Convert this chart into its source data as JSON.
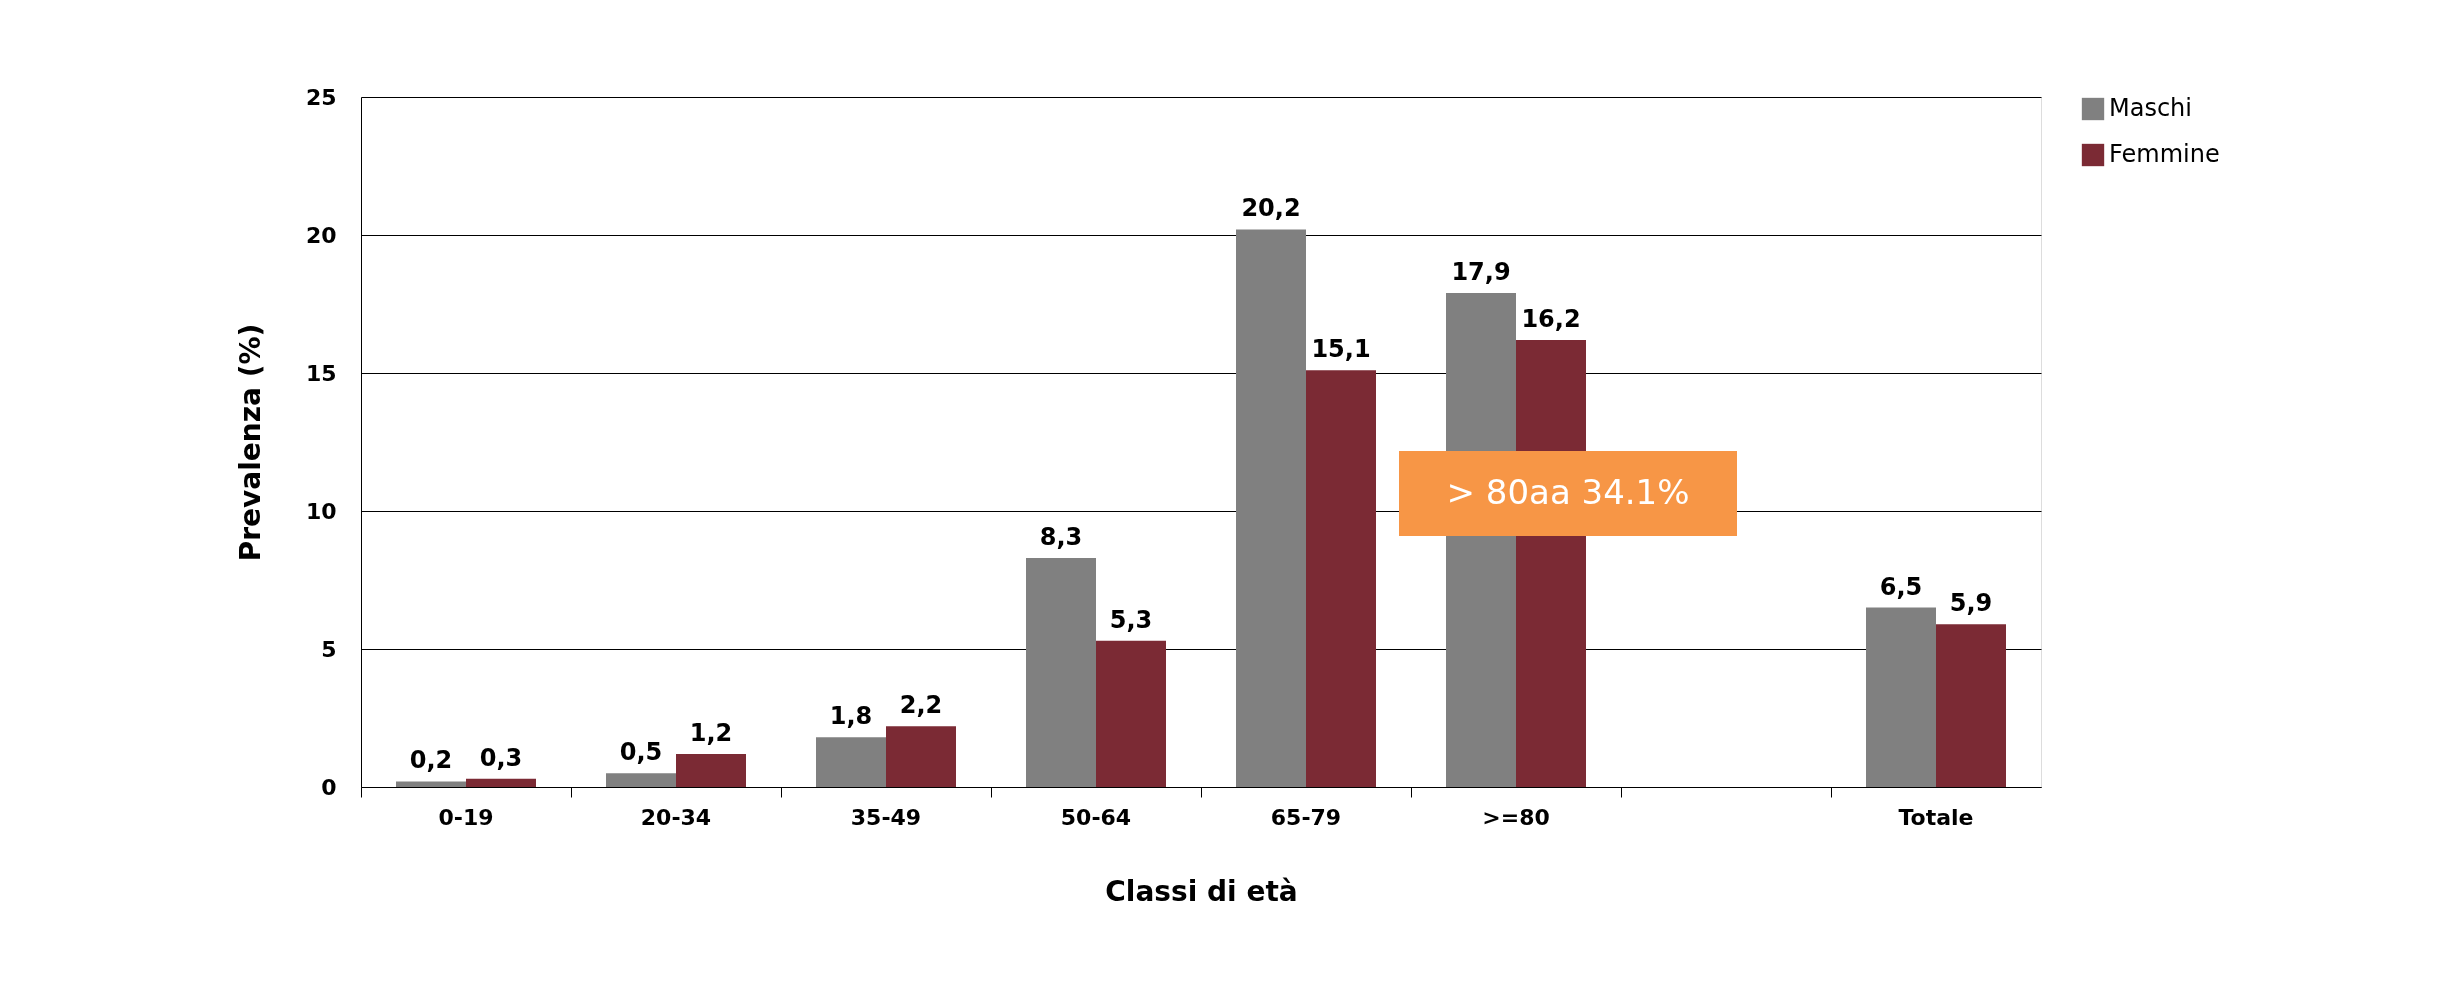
{
  "chart_data": {
    "type": "bar",
    "xlabel": "Classi di età",
    "ylabel": "Prevalenza (%)",
    "categories": [
      "0-19",
      "20-34",
      "35-49",
      "50-64",
      "65-79",
      ">=80",
      null,
      "Totale"
    ],
    "series": [
      {
        "name": "Maschi",
        "color": "#808080",
        "values": [
          0.2,
          0.5,
          1.8,
          8.3,
          20.2,
          17.9,
          null,
          6.5
        ],
        "value_labels": [
          "0,2",
          "0,5",
          "1,8",
          "8,3",
          "20,2",
          "17,9",
          null,
          "6,5"
        ]
      },
      {
        "name": "Femmine",
        "color": "#7b2a34",
        "values": [
          0.3,
          1.2,
          2.2,
          5.3,
          15.1,
          16.2,
          null,
          5.9
        ],
        "value_labels": [
          "0,3",
          "1,2",
          "2,2",
          "5,3",
          "15,1",
          "16,2",
          null,
          "5,9"
        ]
      }
    ],
    "ylim": [
      0,
      25
    ],
    "yticks": [
      0,
      5,
      10,
      15,
      20,
      25
    ],
    "grid": "y",
    "legend": "right",
    "annotations": [
      "> 80aa  34.1%"
    ]
  }
}
